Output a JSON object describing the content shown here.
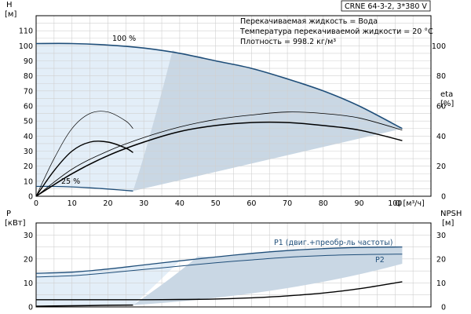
{
  "chart_data": [
    {
      "type": "line",
      "title": "CRNE 64-3-2, 3*380 V",
      "xlabel": "Q [м³/ч]",
      "ylabel": "H [м]",
      "ylabel_right": "eta [%]",
      "xlim": [
        0,
        110
      ],
      "x_ticks": [
        "0",
        "10",
        "20",
        "30",
        "40",
        "50",
        "60",
        "70",
        "80",
        "90",
        "100"
      ],
      "ylim": [
        0,
        120
      ],
      "y_ticks": [
        "0",
        "10",
        "20",
        "30",
        "40",
        "50",
        "60",
        "70",
        "80",
        "90",
        "100",
        "110"
      ],
      "y2lim": [
        0,
        120
      ],
      "y2_ticks": [
        "0",
        "20",
        "40",
        "60",
        "80",
        "100"
      ],
      "grid": true,
      "info_lines": [
        "Перекачиваемая жидкость = Вода",
        "Температура перекачиваемой жидкости = 20 °C",
        "Плотность = 998.2 кг/м³"
      ],
      "curve_labels": {
        "speed_100": "100 %",
        "speed_25": "25 %"
      },
      "series": [
        {
          "name": "100 %",
          "role": "head_max",
          "axis": "left",
          "x": [
            0,
            10,
            20,
            30,
            40,
            50,
            60,
            70,
            80,
            90,
            102
          ],
          "y": [
            101.5,
            101.5,
            100.5,
            98.5,
            95,
            90,
            85,
            78,
            70,
            60,
            45
          ]
        },
        {
          "name": "25 %",
          "role": "head_min",
          "axis": "left",
          "x": [
            0,
            5,
            10,
            15,
            20,
            27
          ],
          "y": [
            6.5,
            6.5,
            6.2,
            5.6,
            4.8,
            3.5
          ]
        },
        {
          "role": "eta_max_thin",
          "axis": "right",
          "x": [
            0,
            10,
            20,
            30,
            40,
            50,
            60,
            70,
            80,
            90,
            102
          ],
          "y": [
            0,
            18,
            30,
            39,
            46,
            51,
            54,
            56,
            55,
            52,
            44
          ]
        },
        {
          "role": "eta_max_thick",
          "axis": "right",
          "x": [
            0,
            10,
            20,
            30,
            40,
            50,
            60,
            70,
            80,
            90,
            102
          ],
          "y": [
            0,
            15,
            27,
            36,
            43,
            47,
            49,
            49,
            47,
            44,
            37
          ]
        },
        {
          "role": "eta_reduced_thin",
          "axis": "right",
          "x": [
            0,
            5,
            10,
            15,
            20,
            25,
            27
          ],
          "y": [
            0,
            25,
            45,
            55,
            56,
            50,
            45
          ]
        },
        {
          "role": "eta_reduced_thick",
          "axis": "right",
          "x": [
            0,
            5,
            10,
            15,
            20,
            25,
            27
          ],
          "y": [
            0,
            17,
            30,
            36,
            36,
            32,
            29
          ]
        }
      ]
    },
    {
      "type": "line",
      "xlabel": "",
      "ylabel": "P [кВт]",
      "ylabel_right": "NPSH [м]",
      "xlim": [
        0,
        110
      ],
      "ylim": [
        0,
        35
      ],
      "y_ticks": [
        "0",
        "10",
        "20",
        "30"
      ],
      "y2lim": [
        0,
        35
      ],
      "y2_ticks": [
        "0",
        "10",
        "20",
        "30"
      ],
      "grid": true,
      "series": [
        {
          "name": "P1 (двиг.+преобр-ль частоты)",
          "axis": "left",
          "x": [
            0,
            10,
            20,
            30,
            40,
            50,
            60,
            70,
            80,
            90,
            102
          ],
          "y": [
            14,
            14.5,
            15.8,
            17.5,
            19.2,
            20.8,
            22.3,
            23.5,
            24.3,
            24.8,
            25
          ]
        },
        {
          "name": "P2",
          "axis": "left",
          "x": [
            0,
            10,
            20,
            30,
            40,
            50,
            60,
            70,
            80,
            90,
            102
          ],
          "y": [
            12.5,
            13,
            14.2,
            15.6,
            17,
            18.4,
            19.6,
            20.7,
            21.4,
            21.8,
            22
          ]
        },
        {
          "role": "npsh",
          "axis": "right",
          "x": [
            0,
            10,
            20,
            30,
            40,
            50,
            60,
            70,
            80,
            90,
            102
          ],
          "y": [
            3,
            3,
            3,
            3,
            3.1,
            3.3,
            3.8,
            4.6,
            5.8,
            7.6,
            10.5
          ]
        },
        {
          "role": "power_min",
          "axis": "left",
          "x": [
            0,
            5,
            10,
            15,
            20,
            27
          ],
          "y": [
            0.3,
            0.4,
            0.5,
            0.6,
            0.7,
            0.8
          ]
        }
      ]
    }
  ]
}
